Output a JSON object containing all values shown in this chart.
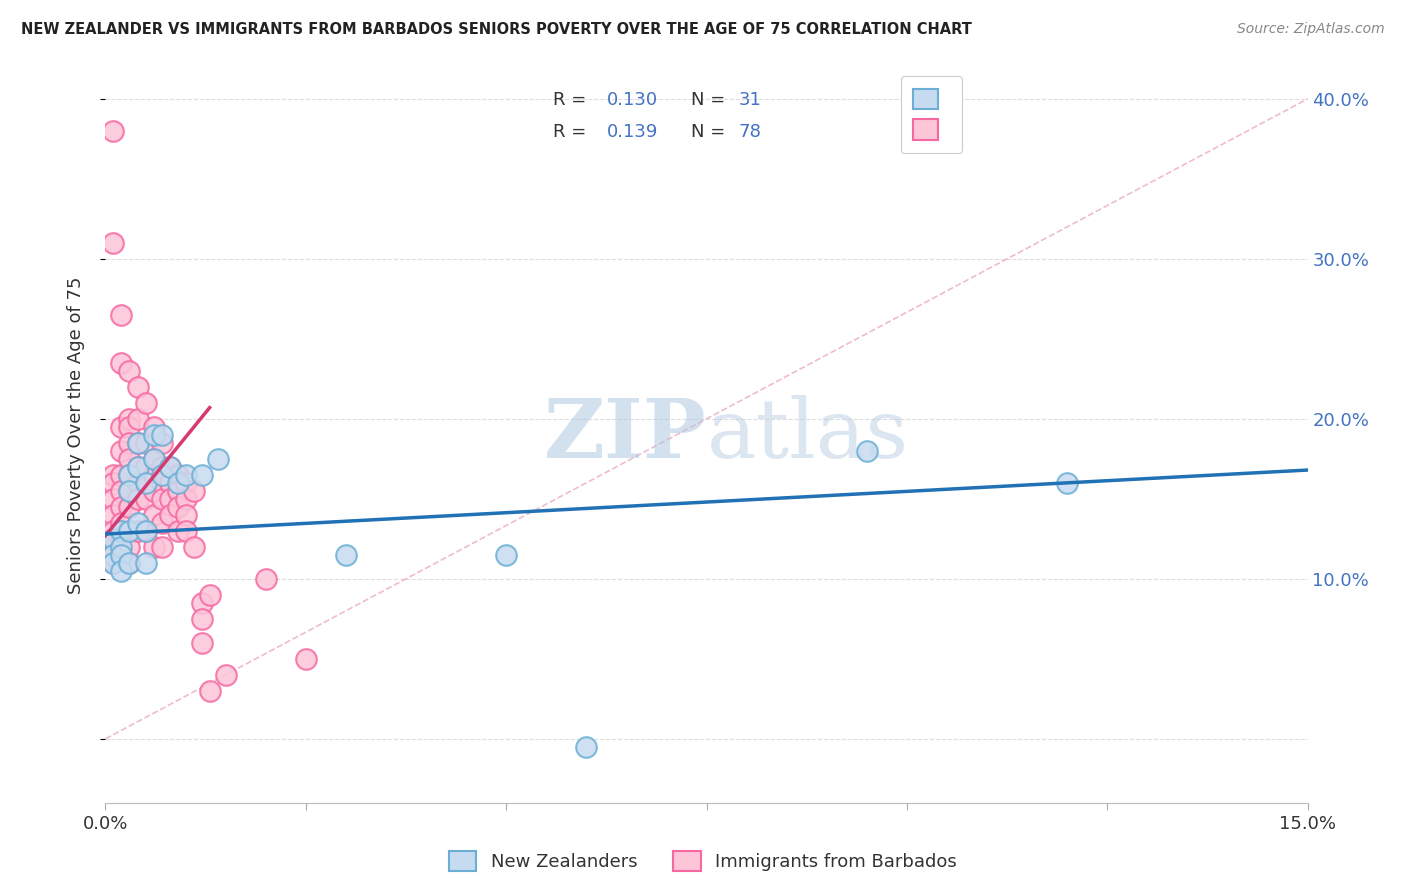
{
  "title": "NEW ZEALANDER VS IMMIGRANTS FROM BARBADOS SENIORS POVERTY OVER THE AGE OF 75 CORRELATION CHART",
  "source": "Source: ZipAtlas.com",
  "ylabel": "Seniors Poverty Over the Age of 75",
  "xlim": [
    0.0,
    0.15
  ],
  "ylim": [
    -0.04,
    0.42
  ],
  "right_yticks": [
    0.1,
    0.2,
    0.3,
    0.4
  ],
  "right_ytick_labels": [
    "10.0%",
    "20.0%",
    "30.0%",
    "40.0%"
  ],
  "watermark_zip": "ZIP",
  "watermark_atlas": "atlas",
  "blue_scatter_color": "#6baed6",
  "blue_scatter_fill": "#c6dbef",
  "pink_scatter_color": "#f768a1",
  "pink_scatter_fill": "#fcc5d8",
  "blue_line_color": "#2171b5",
  "pink_line_color": "#d63a72",
  "diag_line_color": "#e8a0b8",
  "blue_line_x0": 0.0,
  "blue_line_x1": 0.15,
  "blue_line_y0": 0.128,
  "blue_line_y1": 0.168,
  "pink_line_x0": 0.0,
  "pink_line_x1": 0.013,
  "pink_line_y0": 0.127,
  "pink_line_y1": 0.207,
  "nz_x": [
    0.001,
    0.001,
    0.001,
    0.002,
    0.002,
    0.002,
    0.002,
    0.003,
    0.003,
    0.003,
    0.003,
    0.004,
    0.004,
    0.004,
    0.005,
    0.005,
    0.005,
    0.006,
    0.006,
    0.007,
    0.007,
    0.008,
    0.009,
    0.01,
    0.012,
    0.014,
    0.03,
    0.05,
    0.06,
    0.095,
    0.12
  ],
  "nz_y": [
    0.125,
    0.115,
    0.11,
    0.13,
    0.12,
    0.115,
    0.105,
    0.165,
    0.155,
    0.13,
    0.11,
    0.185,
    0.17,
    0.135,
    0.16,
    0.13,
    0.11,
    0.19,
    0.175,
    0.19,
    0.165,
    0.17,
    0.16,
    0.165,
    0.165,
    0.175,
    0.115,
    0.115,
    -0.005,
    0.18,
    0.16
  ],
  "bb_x": [
    0.001,
    0.001,
    0.001,
    0.001,
    0.001,
    0.001,
    0.001,
    0.001,
    0.001,
    0.001,
    0.001,
    0.002,
    0.002,
    0.002,
    0.002,
    0.002,
    0.002,
    0.002,
    0.002,
    0.002,
    0.002,
    0.003,
    0.003,
    0.003,
    0.003,
    0.003,
    0.003,
    0.003,
    0.003,
    0.003,
    0.003,
    0.004,
    0.004,
    0.004,
    0.004,
    0.004,
    0.004,
    0.004,
    0.005,
    0.005,
    0.005,
    0.005,
    0.005,
    0.005,
    0.006,
    0.006,
    0.006,
    0.006,
    0.006,
    0.006,
    0.007,
    0.007,
    0.007,
    0.007,
    0.007,
    0.007,
    0.008,
    0.008,
    0.008,
    0.008,
    0.009,
    0.009,
    0.009,
    0.009,
    0.01,
    0.01,
    0.01,
    0.01,
    0.011,
    0.011,
    0.012,
    0.012,
    0.012,
    0.013,
    0.013,
    0.015,
    0.02,
    0.025
  ],
  "bb_y": [
    0.38,
    0.31,
    0.165,
    0.16,
    0.15,
    0.14,
    0.13,
    0.125,
    0.115,
    0.115,
    0.11,
    0.265,
    0.235,
    0.195,
    0.18,
    0.165,
    0.155,
    0.145,
    0.135,
    0.125,
    0.115,
    0.23,
    0.2,
    0.195,
    0.185,
    0.175,
    0.165,
    0.155,
    0.145,
    0.12,
    0.11,
    0.22,
    0.2,
    0.185,
    0.17,
    0.16,
    0.15,
    0.13,
    0.21,
    0.185,
    0.17,
    0.16,
    0.15,
    0.13,
    0.195,
    0.175,
    0.165,
    0.155,
    0.14,
    0.12,
    0.185,
    0.17,
    0.16,
    0.15,
    0.135,
    0.12,
    0.17,
    0.16,
    0.15,
    0.14,
    0.165,
    0.155,
    0.145,
    0.13,
    0.16,
    0.15,
    0.14,
    0.13,
    0.155,
    0.12,
    0.085,
    0.075,
    0.06,
    0.09,
    0.03,
    0.04,
    0.1,
    0.05
  ]
}
